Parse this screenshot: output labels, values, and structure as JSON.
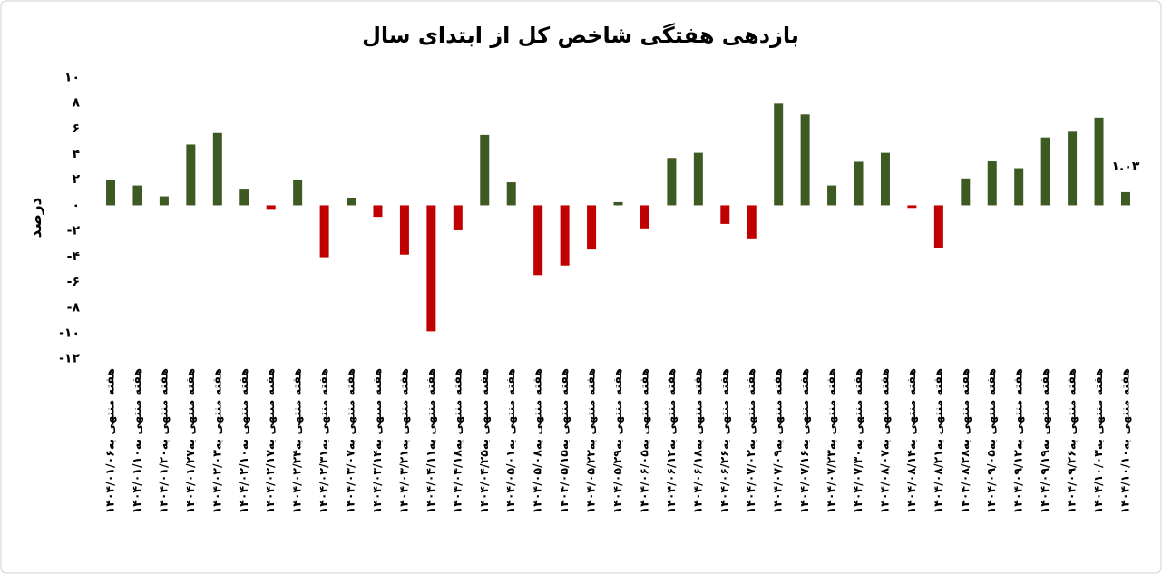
{
  "chart_data": {
    "type": "bar",
    "title": "بازدهی هفتگی شاخص کل از ابتدای سال",
    "y_label": "درصد",
    "categories": [
      "هفته منتهی به۱۴۰۴/۰۱/۰۶",
      "هفته منتهی به۱۴۰۴/۰۱/۱۰",
      "هفته منتهی به۱۴۰۴/۰۱/۲۰",
      "هفته منتهی به۱۴۰۴/۰۱/۲۷",
      "هفته منتهی به۱۴۰۴/۰۲/۰۳",
      "هفته منتهی به۱۴۰۴/۰۲/۱۰",
      "هفته منتهی به۱۴۰۴/۰۲/۱۷",
      "هفته منتهی به۱۴۰۴/۰۲/۲۴",
      "هفته منتهی به۱۴۰۴/۰۲/۳۱",
      "هفته منتهی به۱۴۰۴/۰۳/۰۷",
      "هفته منتهی به۱۴۰۴/۰۳/۱۴",
      "هفته منتهی به۱۴۰۴/۰۳/۲۱",
      "هفته منتهی به۱۴۰۴/۰۴/۱۱",
      "هفته منتهی به۱۴۰۴/۰۴/۱۸",
      "هفته منتهی به۱۴۰۴/۰۴/۲۵",
      "هفته منتهی به۱۴۰۴/۰۵/۰۱",
      "هفته منتهی به۱۴۰۴/۰۵/۰۸",
      "هفته منتهی به۱۴۰۴/۰۵/۱۵",
      "هفته منتهی به۱۴۰۴/۰۵/۲۲",
      "هفته منتهی به۱۴۰۴/۰۵/۲۹",
      "هفته منتهی به۱۴۰۴/۰۶/۰۵",
      "هفته منتهی به۱۴۰۴/۰۶/۱۲",
      "هفته منتهی به۱۴۰۴/۰۶/۱۸",
      "هفته منتهی به۱۴۰۴/۰۶/۲۶",
      "هفته منتهی به۱۴۰۴/۰۷/۰۲",
      "هفته منتهی به۱۴۰۴/۰۷/۰۹",
      "هفته منتهی به۱۴۰۴/۰۷/۱۶",
      "هفته منتهی به۱۴۰۴/۰۷/۲۳",
      "هفته منتهی به۱۴۰۴/۰۷/۳۰",
      "هفته منتهی به۱۴۰۴/۰۸/۰۷",
      "هفته منتهی به۱۴۰۴/۰۸/۱۴",
      "هفته منتهی به۱۴۰۴/۰۸/۲۱",
      "هفته منتهی به۱۴۰۴/۰۸/۲۸",
      "هفته منتهی به۱۴۰۴/۰۹/۰۵",
      "هفته منتهی به۱۴۰۴/۰۹/۱۲",
      "هفته منتهی به۱۴۰۴/۰۹/۱۹",
      "هفته منتهی به۱۴۰۴/۰۹/۲۶",
      "هفته منتهی به۱۴۰۴/۱۰/۰۳",
      "هفته منتهی به۱۴۰۴/۱۰/۱۰"
    ],
    "values": [
      2.0,
      1.55,
      0.7,
      4.75,
      5.65,
      1.3,
      -0.35,
      2.0,
      -4.05,
      0.6,
      -0.9,
      -3.85,
      -9.85,
      -1.95,
      5.5,
      1.8,
      -5.45,
      -4.7,
      -3.45,
      0.25,
      -1.8,
      3.7,
      4.1,
      -1.45,
      -2.65,
      7.95,
      7.1,
      1.55,
      3.4,
      4.1,
      -0.2,
      -3.3,
      2.1,
      3.5,
      2.9,
      5.3,
      5.75,
      6.85,
      1.03
    ],
    "value_labels": [
      null,
      null,
      null,
      null,
      null,
      null,
      null,
      null,
      null,
      null,
      null,
      null,
      null,
      null,
      null,
      null,
      null,
      null,
      null,
      null,
      null,
      null,
      null,
      null,
      null,
      null,
      null,
      null,
      null,
      null,
      null,
      null,
      null,
      null,
      null,
      null,
      null,
      null,
      "۱.۰۳"
    ],
    "positive_color": "#3d5a22",
    "negative_color": "#c00000",
    "ylim": [
      -12,
      10
    ],
    "yticks": [
      {
        "value": -12,
        "label": "-۱۲"
      },
      {
        "value": -10,
        "label": "-۱۰"
      },
      {
        "value": -8,
        "label": "-۸"
      },
      {
        "value": -6,
        "label": "-۶"
      },
      {
        "value": -4,
        "label": "-۴"
      },
      {
        "value": -2,
        "label": "-۲"
      },
      {
        "value": 0,
        "label": "۰"
      },
      {
        "value": 2,
        "label": "۲"
      },
      {
        "value": 4,
        "label": "۴"
      },
      {
        "value": 6,
        "label": "۶"
      },
      {
        "value": 8,
        "label": "۸"
      },
      {
        "value": 10,
        "label": "۱۰"
      }
    ],
    "grid": false
  }
}
